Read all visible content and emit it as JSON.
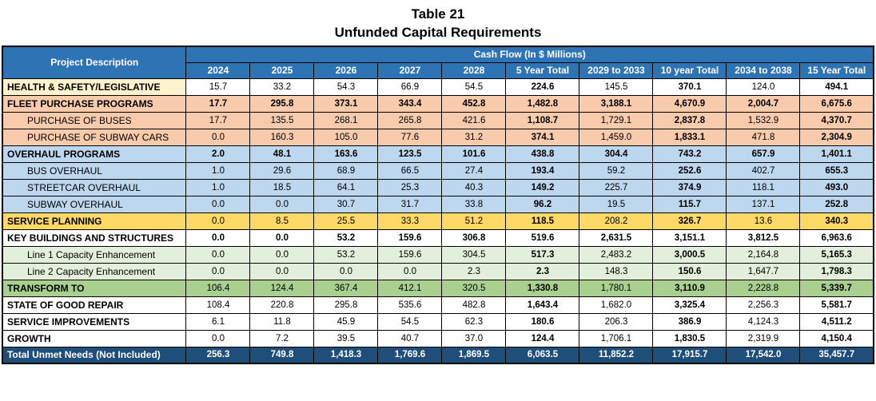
{
  "title": {
    "line1": "Table 21",
    "line2": "Unfunded Capital Requirements"
  },
  "colors": {
    "cream": "#FFF2CC",
    "salmon": "#F8CBAD",
    "lightblue": "#BDD7EE",
    "gold": "#FFD966",
    "white": "#FFFFFF",
    "lightgreen": "#E2EFDA",
    "green": "#A9D08E",
    "headerBlue": "#2E74B5",
    "darkBlue": "#1F4E79"
  },
  "table": {
    "corner_header": "Project Description",
    "group_header": "Cash Flow (In $ Millions)",
    "columns": [
      "2024",
      "2025",
      "2026",
      "2027",
      "2028",
      "5 Year Total",
      "2029 to 2033",
      "10 year Total",
      "2034 to 2038",
      "15 Year Total"
    ],
    "bold_value_columns": [
      5,
      7,
      9
    ],
    "rows": [
      {
        "label": "HEALTH & SAFETY/LEGISLATIVE",
        "label_bg": "cream",
        "bg": "white",
        "indent": false,
        "label_bold": true,
        "values_bold": false,
        "white_text": false,
        "values": [
          "15.7",
          "33.2",
          "54.3",
          "66.9",
          "54.5",
          "224.6",
          "145.5",
          "370.1",
          "124.0",
          "494.1"
        ]
      },
      {
        "label": "FLEET PURCHASE PROGRAMS",
        "bg": "salmon",
        "indent": false,
        "label_bold": true,
        "values_bold": true,
        "white_text": false,
        "values": [
          "17.7",
          "295.8",
          "373.1",
          "343.4",
          "452.8",
          "1,482.8",
          "3,188.1",
          "4,670.9",
          "2,004.7",
          "6,675.6"
        ]
      },
      {
        "label": "PURCHASE OF BUSES",
        "bg": "salmon",
        "indent": true,
        "label_bold": false,
        "values_bold": false,
        "white_text": false,
        "values": [
          "17.7",
          "135.5",
          "268.1",
          "265.8",
          "421.6",
          "1,108.7",
          "1,729.1",
          "2,837.8",
          "1,532.9",
          "4,370.7"
        ]
      },
      {
        "label": "PURCHASE OF SUBWAY CARS",
        "bg": "salmon",
        "indent": true,
        "label_bold": false,
        "values_bold": false,
        "white_text": false,
        "values": [
          "0.0",
          "160.3",
          "105.0",
          "77.6",
          "31.2",
          "374.1",
          "1,459.0",
          "1,833.1",
          "471.8",
          "2,304.9"
        ]
      },
      {
        "label": "OVERHAUL PROGRAMS",
        "bg": "lightblue",
        "indent": false,
        "label_bold": true,
        "values_bold": true,
        "white_text": false,
        "values": [
          "2.0",
          "48.1",
          "163.6",
          "123.5",
          "101.6",
          "438.8",
          "304.4",
          "743.2",
          "657.9",
          "1,401.1"
        ]
      },
      {
        "label": "BUS OVERHAUL",
        "bg": "lightblue",
        "indent": true,
        "label_bold": false,
        "values_bold": false,
        "white_text": false,
        "values": [
          "1.0",
          "29.6",
          "68.9",
          "66.5",
          "27.4",
          "193.4",
          "59.2",
          "252.6",
          "402.7",
          "655.3"
        ]
      },
      {
        "label": "STREETCAR OVERHAUL",
        "bg": "lightblue",
        "indent": true,
        "label_bold": false,
        "values_bold": false,
        "white_text": false,
        "values": [
          "1.0",
          "18.5",
          "64.1",
          "25.3",
          "40.3",
          "149.2",
          "225.7",
          "374.9",
          "118.1",
          "493.0"
        ]
      },
      {
        "label": "SUBWAY OVERHAUL",
        "bg": "lightblue",
        "indent": true,
        "label_bold": false,
        "values_bold": false,
        "white_text": false,
        "values": [
          "0.0",
          "0.0",
          "30.7",
          "31.7",
          "33.8",
          "96.2",
          "19.5",
          "115.7",
          "137.1",
          "252.8"
        ]
      },
      {
        "label": "SERVICE PLANNING",
        "bg": "gold",
        "indent": false,
        "label_bold": true,
        "values_bold": false,
        "white_text": false,
        "values": [
          "0.0",
          "8.5",
          "25.5",
          "33.3",
          "51.2",
          "118.5",
          "208.2",
          "326.7",
          "13.6",
          "340.3"
        ]
      },
      {
        "label": "KEY BUILDINGS AND STRUCTURES",
        "bg": "white",
        "indent": false,
        "label_bold": true,
        "values_bold": true,
        "white_text": false,
        "values": [
          "0.0",
          "0.0",
          "53.2",
          "159.6",
          "306.8",
          "519.6",
          "2,631.5",
          "3,151.1",
          "3,812.5",
          "6,963.6"
        ]
      },
      {
        "label": "Line 1 Capacity Enhancement",
        "bg": "lightgreen",
        "indent": true,
        "label_bold": false,
        "values_bold": false,
        "white_text": false,
        "values": [
          "0.0",
          "0.0",
          "53.2",
          "159.6",
          "304.5",
          "517.3",
          "2,483.2",
          "3,000.5",
          "2,164.8",
          "5,165.3"
        ]
      },
      {
        "label": "Line 2 Capacity Enhancement",
        "bg": "lightgreen",
        "indent": true,
        "label_bold": false,
        "values_bold": false,
        "white_text": false,
        "values": [
          "0.0",
          "0.0",
          "0.0",
          "0.0",
          "2.3",
          "2.3",
          "148.3",
          "150.6",
          "1,647.7",
          "1,798.3"
        ]
      },
      {
        "label": "TRANSFORM TO",
        "bg": "green",
        "indent": false,
        "label_bold": true,
        "values_bold": false,
        "white_text": false,
        "values": [
          "106.4",
          "124.4",
          "367.4",
          "412.1",
          "320.5",
          "1,330.8",
          "1,780.1",
          "3,110.9",
          "2,228.8",
          "5,339.7"
        ]
      },
      {
        "label": "STATE OF GOOD REPAIR",
        "bg": "white",
        "indent": false,
        "label_bold": true,
        "values_bold": false,
        "white_text": false,
        "values": [
          "108.4",
          "220.8",
          "295.8",
          "535.6",
          "482.8",
          "1,643.4",
          "1,682.0",
          "3,325.4",
          "2,256.3",
          "5,581.7"
        ]
      },
      {
        "label": "SERVICE IMPROVEMENTS",
        "bg": "white",
        "indent": false,
        "label_bold": true,
        "values_bold": false,
        "white_text": false,
        "values": [
          "6.1",
          "11.8",
          "45.9",
          "54.5",
          "62.3",
          "180.6",
          "206.3",
          "386.9",
          "4,124.3",
          "4,511.2"
        ]
      },
      {
        "label": "GROWTH",
        "bg": "white",
        "indent": false,
        "label_bold": true,
        "values_bold": false,
        "white_text": false,
        "values": [
          "0.0",
          "7.2",
          "39.5",
          "40.7",
          "37.0",
          "124.4",
          "1,706.1",
          "1,830.5",
          "2,319.9",
          "4,150.4"
        ]
      },
      {
        "label": "Total Unmet Needs (Not Included)",
        "bg": "darkBlue",
        "indent": false,
        "label_bold": true,
        "values_bold": true,
        "white_text": true,
        "values": [
          "256.3",
          "749.8",
          "1,418.3",
          "1,769.6",
          "1,869.5",
          "6,063.5",
          "11,852.2",
          "17,915.7",
          "17,542.0",
          "35,457.7"
        ]
      }
    ]
  }
}
